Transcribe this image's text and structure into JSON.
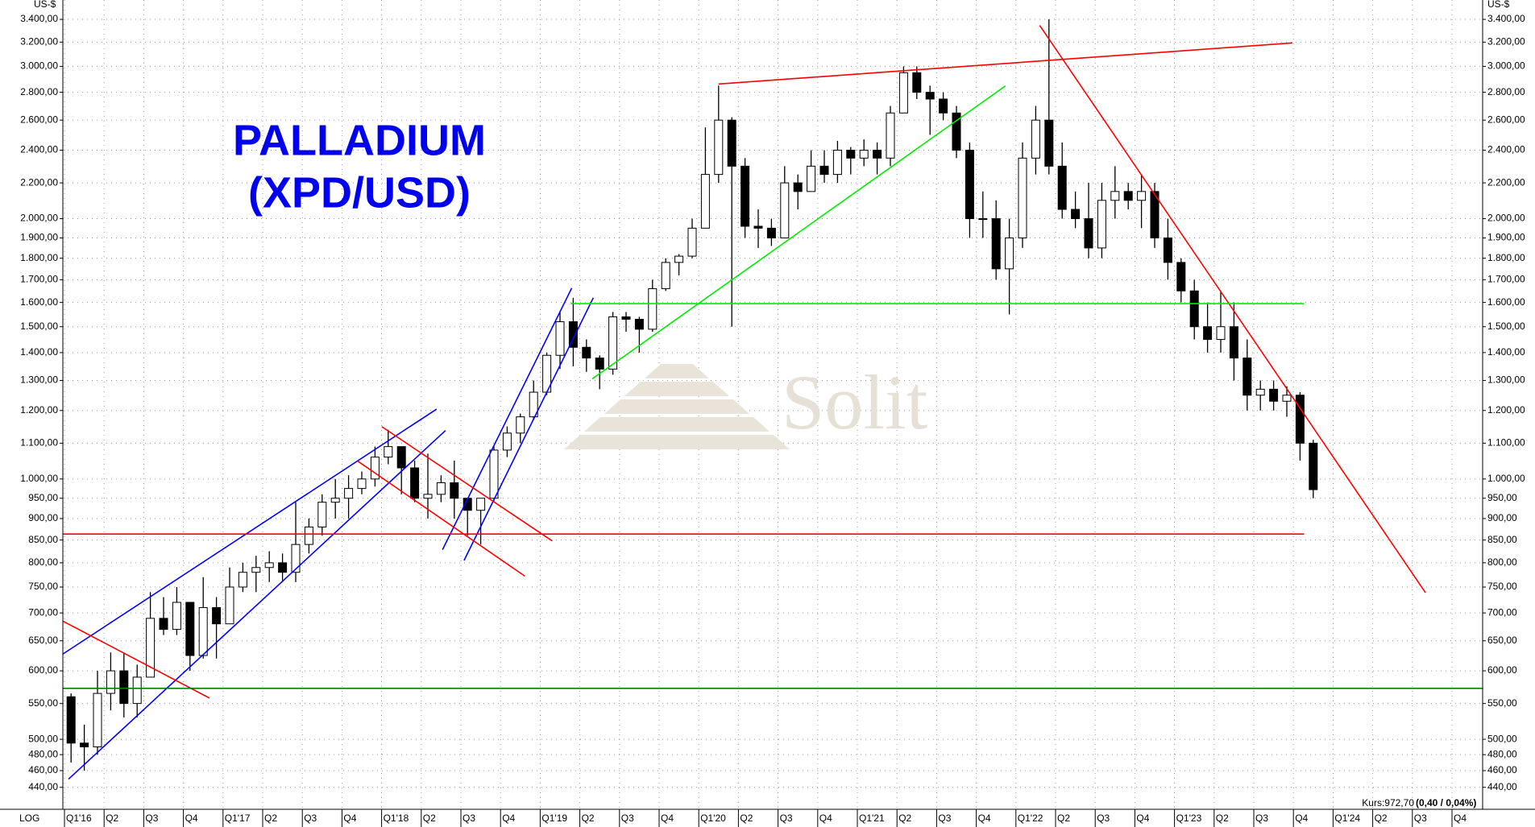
{
  "chart_data": {
    "type": "candlestick",
    "title": [
      "PALLADIUM",
      "(XPD/USD)"
    ],
    "y_unit": "US-$",
    "scale_label": "LOG",
    "log_scale": true,
    "grid": true,
    "watermark": "Solit",
    "last_price": "Kurs:972,70",
    "last_change": "(0,40 / 0,04%)",
    "up_color": "#ffffff",
    "down_color": "#000000",
    "x_labels": [
      "Q1'16",
      "Q2",
      "Q3",
      "Q4",
      "Q1'17",
      "Q2",
      "Q3",
      "Q4",
      "Q1'18",
      "Q2",
      "Q3",
      "Q4",
      "Q1'19",
      "Q2",
      "Q3",
      "Q4",
      "Q1'20",
      "Q2",
      "Q3",
      "Q4",
      "Q1'21",
      "Q2",
      "Q3",
      "Q4",
      "Q1'22",
      "Q2",
      "Q3",
      "Q4",
      "Q1'23",
      "Q2",
      "Q3",
      "Q4",
      "Q1'24",
      "Q2",
      "Q3",
      "Q4"
    ],
    "ylim": [
      415,
      3580
    ],
    "yticks": [
      {
        "value": 440,
        "label": "440,00"
      },
      {
        "value": 460,
        "label": "460,00"
      },
      {
        "value": 480,
        "label": "480,00"
      },
      {
        "value": 500,
        "label": "500,00"
      },
      {
        "value": 550,
        "label": "550,00"
      },
      {
        "value": 600,
        "label": "600,00"
      },
      {
        "value": 650,
        "label": "650,00"
      },
      {
        "value": 700,
        "label": "700,00"
      },
      {
        "value": 750,
        "label": "750,00"
      },
      {
        "value": 800,
        "label": "800,00"
      },
      {
        "value": 850,
        "label": "850,00"
      },
      {
        "value": 900,
        "label": "900,00"
      },
      {
        "value": 950,
        "label": "950,00"
      },
      {
        "value": 1000,
        "label": "1.000,00"
      },
      {
        "value": 1100,
        "label": "1.100,00"
      },
      {
        "value": 1200,
        "label": "1.200,00"
      },
      {
        "value": 1300,
        "label": "1.300,00"
      },
      {
        "value": 1400,
        "label": "1.400,00"
      },
      {
        "value": 1500,
        "label": "1.500,00"
      },
      {
        "value": 1600,
        "label": "1.600,00"
      },
      {
        "value": 1700,
        "label": "1.700,00"
      },
      {
        "value": 1800,
        "label": "1.800,00"
      },
      {
        "value": 1900,
        "label": "1.900,00"
      },
      {
        "value": 2000,
        "label": "2.000,00"
      },
      {
        "value": 2200,
        "label": "2.200,00"
      },
      {
        "value": 2400,
        "label": "2.400,00"
      },
      {
        "value": 2600,
        "label": "2.600,00"
      },
      {
        "value": 2800,
        "label": "2.800,00"
      },
      {
        "value": 3000,
        "label": "3.000,00"
      },
      {
        "value": 3200,
        "label": "3.200,00"
      },
      {
        "value": 3400,
        "label": "3.400,00"
      }
    ],
    "open": [
      560,
      495,
      490,
      565,
      600,
      550,
      590,
      690,
      670,
      720,
      625,
      710,
      680,
      750,
      780,
      790,
      800,
      780,
      840,
      880,
      940,
      950,
      975,
      1000,
      1060,
      1090,
      1030,
      950,
      960,
      990,
      950,
      920,
      950,
      1080,
      1130,
      1180,
      1260,
      1390,
      1520,
      1420,
      1380,
      1340,
      1540,
      1530,
      1490,
      1660,
      1780,
      1810,
      1950,
      2250,
      2600,
      2300,
      1960,
      1950,
      1900,
      2200,
      2150,
      2300,
      2250,
      2400,
      2350,
      2400,
      2350,
      2650,
      2950,
      2800,
      2750,
      2650,
      2400,
      2000,
      2000,
      1750,
      1900,
      2350,
      2600,
      2300,
      2050,
      2000,
      1850,
      2100,
      2150,
      2100,
      2150,
      1900,
      1780,
      1650,
      1500,
      1450,
      1500,
      1380,
      1250,
      1270,
      1230,
      1250,
      1100
    ],
    "high": [
      565,
      520,
      600,
      630,
      630,
      610,
      740,
      730,
      750,
      720,
      770,
      730,
      790,
      800,
      815,
      825,
      820,
      940,
      900,
      960,
      1000,
      1010,
      1020,
      1090,
      1140,
      1090,
      1050,
      1070,
      1010,
      1050,
      950,
      950,
      1090,
      1150,
      1190,
      1300,
      1400,
      1560,
      1620,
      1450,
      1390,
      1560,
      1560,
      1540,
      1700,
      1800,
      1820,
      2000,
      2550,
      2850,
      2620,
      2350,
      2050,
      2000,
      2300,
      2250,
      2400,
      2400,
      2460,
      2420,
      2470,
      2450,
      2700,
      3000,
      3000,
      2850,
      2800,
      2700,
      2450,
      2150,
      2100,
      2000,
      2450,
      2700,
      3400,
      2450,
      2150,
      2200,
      2200,
      2300,
      2200,
      2250,
      2200,
      2000,
      1800,
      1700,
      1600,
      1650,
      1600,
      1450,
      1300,
      1300,
      1280,
      1260,
      1110
    ],
    "low": [
      470,
      460,
      480,
      540,
      530,
      530,
      590,
      660,
      660,
      600,
      620,
      620,
      680,
      740,
      740,
      760,
      760,
      760,
      820,
      860,
      900,
      900,
      960,
      980,
      1040,
      960,
      940,
      900,
      940,
      900,
      860,
      840,
      940,
      1060,
      1100,
      1170,
      1250,
      1340,
      1350,
      1330,
      1270,
      1320,
      1480,
      1400,
      1480,
      1650,
      1720,
      1800,
      1950,
      2200,
      1500,
      1900,
      1850,
      1860,
      1900,
      2050,
      2150,
      2200,
      2200,
      2250,
      2300,
      2250,
      2300,
      2650,
      2750,
      2500,
      2600,
      2350,
      1900,
      1900,
      1700,
      1550,
      1850,
      2250,
      2250,
      2000,
      1950,
      1800,
      1800,
      2000,
      2050,
      1950,
      1850,
      1700,
      1600,
      1450,
      1400,
      1400,
      1300,
      1200,
      1200,
      1200,
      1180,
      1050,
      950
    ],
    "close": [
      495,
      490,
      565,
      600,
      550,
      590,
      690,
      670,
      720,
      625,
      710,
      680,
      750,
      780,
      790,
      800,
      780,
      840,
      880,
      940,
      950,
      975,
      1000,
      1060,
      1090,
      1030,
      950,
      960,
      990,
      950,
      920,
      950,
      1080,
      1130,
      1180,
      1260,
      1390,
      1520,
      1420,
      1380,
      1340,
      1540,
      1530,
      1490,
      1660,
      1780,
      1810,
      1950,
      2250,
      2600,
      2300,
      1960,
      1950,
      1900,
      2200,
      2150,
      2300,
      2250,
      2400,
      2350,
      2400,
      2350,
      2650,
      2950,
      2800,
      2750,
      2650,
      2400,
      2000,
      2000,
      1750,
      1900,
      2350,
      2600,
      2300,
      2050,
      2000,
      1850,
      2100,
      2150,
      2100,
      2150,
      1900,
      1780,
      1650,
      1500,
      1450,
      1500,
      1380,
      1250,
      1270,
      1230,
      1250,
      1100,
      972
    ]
  }
}
